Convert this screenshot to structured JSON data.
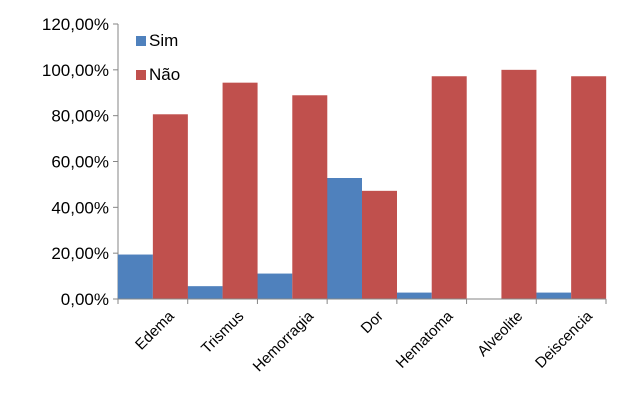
{
  "chart_data": {
    "type": "bar",
    "categories": [
      "Edema",
      "Trismus",
      "Hemorragia",
      "Dor",
      "Hematoma",
      "Alveolite",
      "Deiscencia"
    ],
    "series": [
      {
        "name": "Sim",
        "color": "#4F81BD",
        "values": [
          19.4,
          5.6,
          11.1,
          52.8,
          2.8,
          0,
          2.8
        ]
      },
      {
        "name": "Não",
        "color": "#C0504D",
        "values": [
          80.6,
          94.4,
          88.9,
          47.2,
          97.2,
          100,
          97.2
        ]
      }
    ],
    "ylim": [
      0,
      120
    ],
    "yticks": [
      {
        "value": 0,
        "label": "0,00%"
      },
      {
        "value": 20,
        "label": "20,00%"
      },
      {
        "value": 40,
        "label": "40,00%"
      },
      {
        "value": 60,
        "label": "60,00%"
      },
      {
        "value": 80,
        "label": "80,00%"
      },
      {
        "value": 100,
        "label": "100,00%"
      },
      {
        "value": 120,
        "label": "120,00%"
      }
    ],
    "grid": false,
    "legend_position": "top-left"
  }
}
